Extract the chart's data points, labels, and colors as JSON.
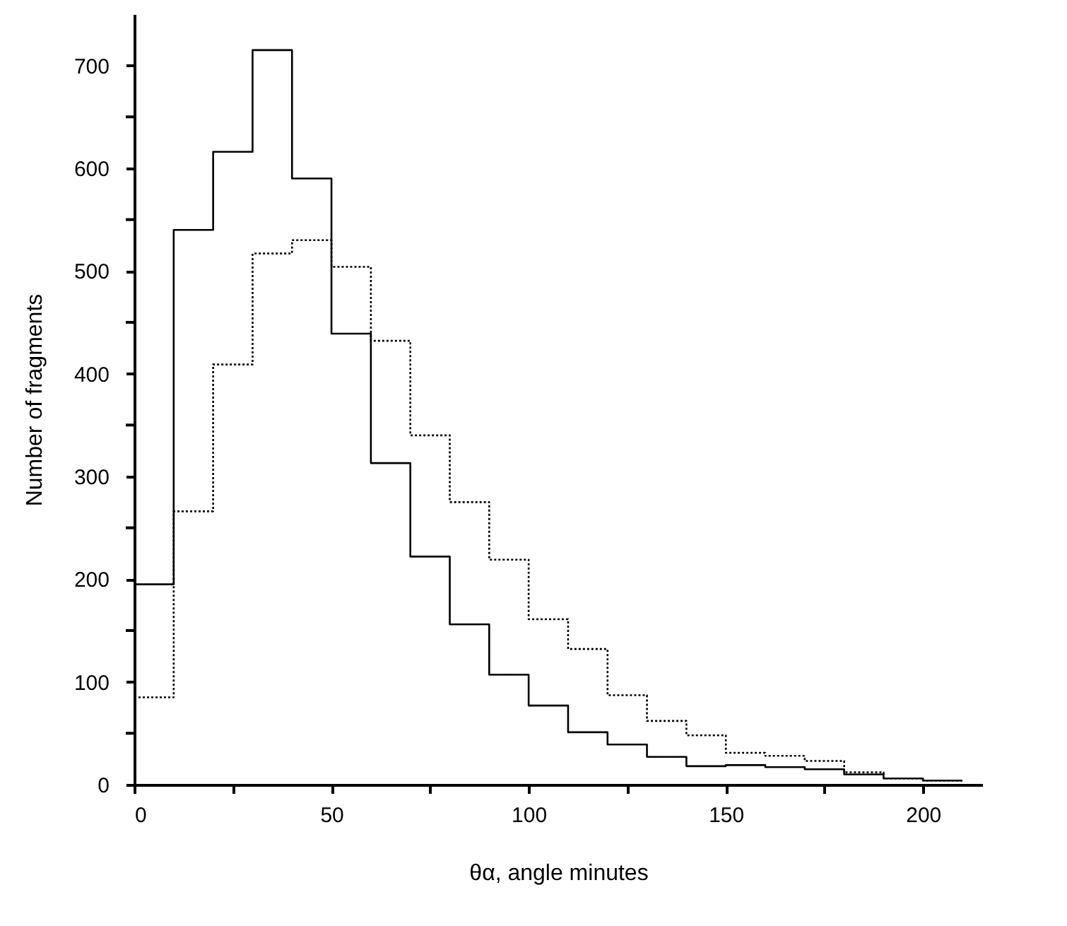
{
  "chart_data": {
    "type": "histogram",
    "xlabel": "θα, angle minutes",
    "ylabel": "Number of fragments",
    "bins": [
      0,
      10,
      20,
      30,
      40,
      50,
      60,
      70,
      80,
      90,
      100,
      110,
      120,
      130,
      140,
      150,
      160,
      170,
      180,
      190,
      200,
      210
    ],
    "series": [
      {
        "color": "#000000",
        "line_style": "solid",
        "values": [
          195,
          540,
          616,
          715,
          590,
          439,
          313,
          222,
          156,
          107,
          77,
          51,
          39,
          27,
          18,
          19,
          17,
          15,
          10,
          6,
          4
        ]
      },
      {
        "color": "#000000",
        "line_style": "dotted",
        "values": [
          85,
          266,
          409,
          517,
          530,
          504,
          432,
          340,
          275,
          219,
          161,
          132,
          87,
          62,
          48,
          31,
          28,
          23,
          12,
          6,
          4
        ]
      }
    ],
    "xlim": [
      0,
      215
    ],
    "ylim": [
      0,
      750
    ],
    "xticks": [
      0,
      {
        "value": 25,
        "label": null
      },
      50,
      {
        "value": 75,
        "label": null
      },
      100,
      {
        "value": 125,
        "label": null
      },
      150,
      {
        "value": 175,
        "label": null
      },
      200
    ],
    "yticks": [
      0,
      {
        "value": 50,
        "label": null
      },
      100,
      {
        "value": 150,
        "label": null
      },
      200,
      {
        "value": 250,
        "label": null
      },
      300,
      {
        "value": 350,
        "label": null
      },
      400,
      {
        "value": 450,
        "label": null
      },
      500,
      {
        "value": 550,
        "label": null
      },
      600,
      {
        "value": 650,
        "label": null
      },
      700
    ],
    "grid": false
  }
}
